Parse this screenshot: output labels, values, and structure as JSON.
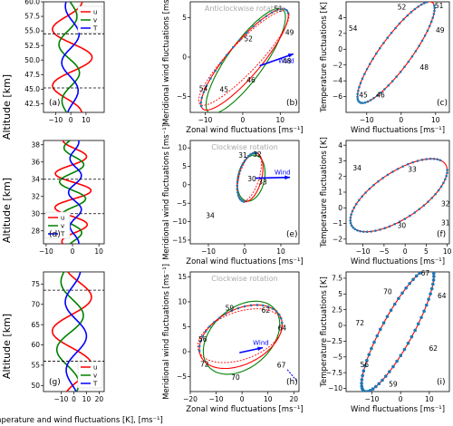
{
  "colors": {
    "u": "#ff0000",
    "v": "#008000",
    "T": "#0000ff",
    "dots": "#1f77b4",
    "fit": "#ff0000",
    "rot": "#aaaaaa"
  },
  "text": {
    "bottom_xlabel": "Temperature and  wind fluctuations [K], [ms⁻¹]",
    "zonal_xlabel": "Zonal wind fluctuations [ms⁻¹]",
    "wind_xlabel": "Wind fluctuations [ms⁻¹]",
    "merid_ylabel": "Meridional wind fluctuations [ms⁻¹]",
    "temp_ylabel": "Temperature fluctuations [K]",
    "temp_ylabel_i": "Temperature fluctuations [K]",
    "alt_ylabel": "Altitude [km]",
    "rot_b": "Anticlockwise rotation",
    "rot_e": "Clockwise rotation",
    "rot_h": "Clockwise rotation",
    "wind": "Wind"
  },
  "chart_data": [
    {
      "id": "a",
      "type": "line",
      "ylabel": "Altitude [km]",
      "xlim": [
        -18,
        22
      ],
      "ylim": [
        41,
        60
      ],
      "xticks": [
        -10,
        0,
        10
      ],
      "yticks": [
        42.5,
        45.0,
        47.5,
        50.0,
        52.5,
        55.0,
        57.5,
        60.0
      ],
      "hlines": [
        45.2,
        54.5
      ],
      "legend": [
        "u",
        "v",
        "T"
      ],
      "legend_position": "top-right",
      "series": [
        {
          "name": "u",
          "profile": {
            "amp": 14,
            "period": 10,
            "phase": 1.3,
            "offset": 0
          }
        },
        {
          "name": "v",
          "profile": {
            "amp": 7,
            "period": 10,
            "phase": 3.0,
            "offset": -1
          }
        },
        {
          "name": "T",
          "profile": {
            "amp": 6,
            "period": 10,
            "phase": 5.0,
            "offset": 0
          }
        }
      ]
    },
    {
      "id": "b",
      "type": "hodograph",
      "xlabel": "Zonal wind fluctuations [ms⁻¹]",
      "ylabel": "Meridional wind fluctuations [ms⁻¹]",
      "xlim": [
        -14,
        15
      ],
      "ylim": [
        -7,
        7
      ],
      "xticks": [
        -10,
        0,
        10
      ],
      "yticks": [
        -5,
        0,
        5
      ],
      "ellipse": {
        "cx": 0.5,
        "cy": -0.3,
        "a": 13,
        "b": 2.8,
        "angle_deg": 27
      },
      "labels": [
        {
          "t": "51",
          "x": 9.5,
          "y": 5.8
        },
        {
          "t": "49",
          "x": 12.5,
          "y": 2.8
        },
        {
          "t": "48",
          "x": 11.8,
          "y": -0.8
        },
        {
          "t": "52",
          "x": 1.5,
          "y": 2.0
        },
        {
          "t": "46",
          "x": 2.2,
          "y": -3.2
        },
        {
          "t": "45",
          "x": -5.0,
          "y": -4.4
        },
        {
          "t": "54",
          "x": -10.5,
          "y": -4.3
        }
      ],
      "wind_vector": {
        "from": [
          4.5,
          -1.1
        ],
        "to": [
          13.5,
          0.4
        ]
      }
    },
    {
      "id": "c",
      "type": "scatter_ellipse",
      "xlabel": "Wind fluctuations [ms⁻¹]",
      "ylabel": "Temperature fluctuations [K]",
      "xlim": [
        -16,
        14
      ],
      "ylim": [
        -8,
        6
      ],
      "xticks": [
        -10,
        0,
        10
      ],
      "yticks": [
        -6,
        -4,
        -2,
        0,
        2,
        4
      ],
      "ellipse": {
        "cx": -1.5,
        "cy": -0.4,
        "a": 12.6,
        "b": 2.8,
        "angle_deg": 28
      },
      "labels": [
        {
          "t": "52",
          "x": 0.2,
          "y": 5.0
        },
        {
          "t": "51",
          "x": 11.0,
          "y": 5.2
        },
        {
          "t": "49",
          "x": 11.3,
          "y": 2.1
        },
        {
          "t": "48",
          "x": 6.7,
          "y": -2.6
        },
        {
          "t": "46",
          "x": -6.0,
          "y": -6.1
        },
        {
          "t": "45",
          "x": -11.0,
          "y": -6.1
        },
        {
          "t": "54",
          "x": -14.0,
          "y": 2.3
        }
      ]
    },
    {
      "id": "d",
      "type": "line",
      "ylabel": "Altitude [km]",
      "xlim": [
        -11,
        12
      ],
      "ylim": [
        26.5,
        38.5
      ],
      "xticks": [
        -10,
        0,
        10
      ],
      "yticks": [
        28,
        30,
        32,
        34,
        36,
        38
      ],
      "hlines": [
        30,
        34
      ],
      "legend": [
        "u",
        "v",
        "T"
      ],
      "legend_position": "bottom-left",
      "series": [
        {
          "name": "u",
          "profile": {
            "amp": 7,
            "period": 4,
            "phase": 0.5,
            "offset": 0
          }
        },
        {
          "name": "v",
          "profile": {
            "amp": 5,
            "period": 4,
            "phase": 2.0,
            "offset": 0
          }
        },
        {
          "name": "T",
          "profile": {
            "amp": 2.5,
            "period": 4,
            "phase": 4.0,
            "offset": 1
          }
        }
      ]
    },
    {
      "id": "e",
      "type": "hodograph",
      "xlabel": "Zonal wind fluctuations [ms⁻¹]",
      "ylabel": "Meridional wind fluctuations [ms⁻¹]",
      "xlim": [
        -15,
        15
      ],
      "ylim": [
        -16,
        12
      ],
      "xticks": [
        -10,
        0,
        10
      ],
      "yticks": [
        -15,
        -10,
        -5,
        0,
        5,
        10
      ],
      "ellipse": {
        "cx": 1.5,
        "cy": 2.0,
        "a": 6.8,
        "b": 3.2,
        "angle_deg": 75
      },
      "labels": [
        {
          "t": "31",
          "x": -0.5,
          "y": 7.3
        },
        {
          "t": "32",
          "x": 3.5,
          "y": 7.6
        },
        {
          "t": "30",
          "x": 2.0,
          "y": 1.0
        },
        {
          "t": "33",
          "x": 5.0,
          "y": 0.1
        },
        {
          "t": "34",
          "x": -9.5,
          "y": -9.0
        }
      ],
      "wind_vector": {
        "from": [
          3.0,
          1.8
        ],
        "to": [
          12.5,
          2.0
        ]
      }
    },
    {
      "id": "f",
      "type": "scatter_ellipse",
      "xlabel": "Wind fluctuations [ms⁻¹]",
      "ylabel": "Temperature fluctuations [K]",
      "xlim": [
        -14,
        10.5
      ],
      "ylim": [
        -2.3,
        4.3
      ],
      "xticks": [
        -10,
        -5,
        0,
        5,
        10
      ],
      "yticks": [
        -2,
        -1,
        0,
        1,
        2,
        3,
        4
      ],
      "ellipse": {
        "cx": -1.5,
        "cy": 0.8,
        "a": 11.6,
        "b": 1.7,
        "angle_deg": 8
      },
      "labels": [
        {
          "t": "34",
          "x": -11.4,
          "y": 2.4
        },
        {
          "t": "33",
          "x": 1.7,
          "y": 2.3
        },
        {
          "t": "32",
          "x": 9.6,
          "y": 0.1
        },
        {
          "t": "31",
          "x": 9.6,
          "y": -1.1
        },
        {
          "t": "30",
          "x": -0.8,
          "y": -1.3
        }
      ]
    },
    {
      "id": "g",
      "type": "line",
      "ylabel": "Altitude [km]",
      "xlim": [
        -24,
        24
      ],
      "ylim": [
        48.5,
        78
      ],
      "xticks": [
        -10,
        0,
        10,
        20
      ],
      "yticks": [
        50,
        55,
        60,
        65,
        70,
        75
      ],
      "hlines": [
        56,
        73.5
      ],
      "legend": [
        "u",
        "v",
        "T"
      ],
      "legend_position": "bottom-right",
      "series": [
        {
          "name": "u",
          "profile": {
            "amp": 17,
            "period": 17.5,
            "phase": 0.8,
            "offset": 0
          }
        },
        {
          "name": "v",
          "profile": {
            "amp": 11,
            "period": 17.5,
            "phase": 2.5,
            "offset": -3
          }
        },
        {
          "name": "T",
          "profile": {
            "amp": 9,
            "period": 17.5,
            "phase": 4.4,
            "offset": 1
          }
        }
      ]
    },
    {
      "id": "h",
      "type": "hodograph",
      "xlabel": "Zonal wind fluctuations [ms⁻¹]",
      "ylabel": "Meridional wind fluctuations [ms⁻¹]",
      "xlim": [
        -20,
        22
      ],
      "ylim": [
        -8,
        16
      ],
      "xticks": [
        -20,
        -10,
        0,
        10,
        20
      ],
      "yticks": [
        -5,
        0,
        5,
        10,
        15
      ],
      "ellipse": {
        "cx": -0.5,
        "cy": 3.0,
        "a": 16.2,
        "b": 5.8,
        "angle_deg": 10
      },
      "labels": [
        {
          "t": "59",
          "x": -4.8,
          "y": 8.3
        },
        {
          "t": "62",
          "x": 9.2,
          "y": 7.8
        },
        {
          "t": "64",
          "x": 15.5,
          "y": 4.3
        },
        {
          "t": "56",
          "x": -15.2,
          "y": 2.0
        },
        {
          "t": "72",
          "x": -14.5,
          "y": -3.0
        },
        {
          "t": "70",
          "x": -2.5,
          "y": -5.6
        },
        {
          "t": "67",
          "x": 15.2,
          "y": -3.2
        }
      ],
      "wind_vector": {
        "from": [
          -1.0,
          -0.2
        ],
        "to": [
          8.0,
          0.8
        ]
      },
      "wind_arrow2": {
        "from": [
          17.5,
          -3.6
        ],
        "to": [
          21.0,
          -5.8
        ]
      }
    },
    {
      "id": "i",
      "type": "scatter_ellipse",
      "xlabel": "Wind fluctuations [ms⁻¹]",
      "ylabel": "Temperature fluctuations [K]",
      "xlim": [
        -19,
        17
      ],
      "ylim": [
        -10.5,
        8.5
      ],
      "xticks": [
        -10,
        0,
        10
      ],
      "yticks": [
        -10.0,
        -7.5,
        -5.0,
        -2.5,
        0.0,
        2.5,
        5.0,
        7.5
      ],
      "ellipse": {
        "cx": -1.0,
        "cy": -0.7,
        "a": 15.5,
        "b": 3.9,
        "angle_deg": 37
      },
      "labels": [
        {
          "t": "67",
          "x": 8.6,
          "y": 7.9
        },
        {
          "t": "70",
          "x": -4.5,
          "y": 5.0
        },
        {
          "t": "64",
          "x": 14.4,
          "y": 4.3
        },
        {
          "t": "72",
          "x": -14.2,
          "y": 0.0
        },
        {
          "t": "62",
          "x": 11.4,
          "y": -4.0
        },
        {
          "t": "56",
          "x": -12.6,
          "y": -6.6
        },
        {
          "t": "59",
          "x": -2.6,
          "y": -9.7
        }
      ]
    }
  ]
}
